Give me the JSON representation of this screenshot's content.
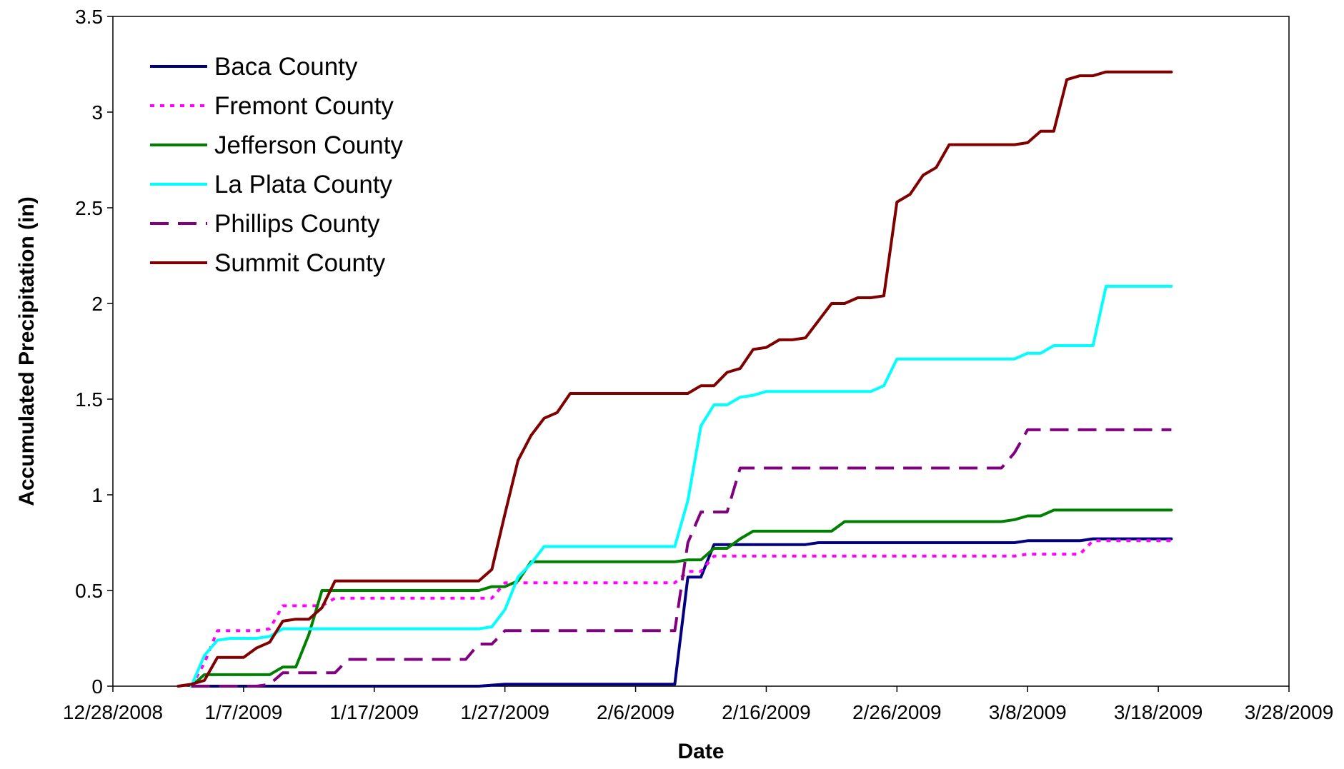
{
  "chart_data": {
    "type": "line",
    "title": "",
    "xlabel": "Date",
    "ylabel": "Accumulated Precipitation (in)",
    "xlim": [
      "2008-12-28",
      "2009-03-28"
    ],
    "ylim": [
      0,
      3.5
    ],
    "x_ticks": [
      {
        "date": "2008-12-28",
        "label": "12/28/2008"
      },
      {
        "date": "2009-01-07",
        "label": "1/7/2009"
      },
      {
        "date": "2009-01-17",
        "label": "1/17/2009"
      },
      {
        "date": "2009-01-27",
        "label": "1/27/2009"
      },
      {
        "date": "2009-02-06",
        "label": "2/6/2009"
      },
      {
        "date": "2009-02-16",
        "label": "2/16/2009"
      },
      {
        "date": "2009-02-26",
        "label": "2/26/2009"
      },
      {
        "date": "2009-03-08",
        "label": "3/8/2009"
      },
      {
        "date": "2009-03-18",
        "label": "3/18/2009"
      },
      {
        "date": "2009-03-28",
        "label": "3/28/2009"
      }
    ],
    "y_ticks": [
      {
        "value": 0,
        "label": "0"
      },
      {
        "value": 0.5,
        "label": "0.5"
      },
      {
        "value": 1,
        "label": "1"
      },
      {
        "value": 1.5,
        "label": "1.5"
      },
      {
        "value": 2,
        "label": "2"
      },
      {
        "value": 2.5,
        "label": "2.5"
      },
      {
        "value": 3,
        "label": "3"
      },
      {
        "value": 3.5,
        "label": "3.5"
      }
    ],
    "legend_position": "top-left",
    "grid": false,
    "series": [
      {
        "name": "Baca County",
        "color": "#000080",
        "dash": "solid",
        "points": [
          [
            "2009-01-03",
            0
          ],
          [
            "2009-01-04",
            0
          ],
          [
            "2009-01-05",
            0
          ],
          [
            "2009-01-20",
            0
          ],
          [
            "2009-01-25",
            0
          ],
          [
            "2009-01-27",
            0.01
          ],
          [
            "2009-02-08",
            0.01
          ],
          [
            "2009-02-09",
            0.01
          ],
          [
            "2009-02-10",
            0.57
          ],
          [
            "2009-02-11",
            0.57
          ],
          [
            "2009-02-12",
            0.74
          ],
          [
            "2009-02-13",
            0.74
          ],
          [
            "2009-02-14",
            0.74
          ],
          [
            "2009-02-18",
            0.74
          ],
          [
            "2009-02-19",
            0.74
          ],
          [
            "2009-02-20",
            0.75
          ],
          [
            "2009-02-26",
            0.75
          ],
          [
            "2009-03-07",
            0.75
          ],
          [
            "2009-03-08",
            0.76
          ],
          [
            "2009-03-11",
            0.76
          ],
          [
            "2009-03-12",
            0.76
          ],
          [
            "2009-03-13",
            0.77
          ],
          [
            "2009-03-19",
            0.77
          ]
        ]
      },
      {
        "name": "Fremont County",
        "color": "#ff00ff",
        "dash": "dotted",
        "points": [
          [
            "2009-01-03",
            0
          ],
          [
            "2009-01-04",
            0.12
          ],
          [
            "2009-01-05",
            0.29
          ],
          [
            "2009-01-07",
            0.29
          ],
          [
            "2009-01-08",
            0.29
          ],
          [
            "2009-01-09",
            0.3
          ],
          [
            "2009-01-10",
            0.42
          ],
          [
            "2009-01-13",
            0.42
          ],
          [
            "2009-01-14",
            0.46
          ],
          [
            "2009-01-26",
            0.46
          ],
          [
            "2009-01-27",
            0.54
          ],
          [
            "2009-02-09",
            0.54
          ],
          [
            "2009-02-10",
            0.6
          ],
          [
            "2009-02-11",
            0.6
          ],
          [
            "2009-02-12",
            0.68
          ],
          [
            "2009-03-07",
            0.68
          ],
          [
            "2009-03-08",
            0.69
          ],
          [
            "2009-03-12",
            0.69
          ],
          [
            "2009-03-13",
            0.76
          ],
          [
            "2009-03-19",
            0.76
          ]
        ]
      },
      {
        "name": "Jefferson County",
        "color": "#008000",
        "dash": "solid",
        "points": [
          [
            "2009-01-03",
            0
          ],
          [
            "2009-01-04",
            0.06
          ],
          [
            "2009-01-05",
            0.06
          ],
          [
            "2009-01-09",
            0.06
          ],
          [
            "2009-01-10",
            0.1
          ],
          [
            "2009-01-11",
            0.1
          ],
          [
            "2009-01-12",
            0.27
          ],
          [
            "2009-01-13",
            0.5
          ],
          [
            "2009-01-25",
            0.5
          ],
          [
            "2009-01-26",
            0.52
          ],
          [
            "2009-01-27",
            0.52
          ],
          [
            "2009-01-28",
            0.55
          ],
          [
            "2009-01-29",
            0.65
          ],
          [
            "2009-02-09",
            0.65
          ],
          [
            "2009-02-10",
            0.66
          ],
          [
            "2009-02-11",
            0.66
          ],
          [
            "2009-02-12",
            0.72
          ],
          [
            "2009-02-13",
            0.72
          ],
          [
            "2009-02-14",
            0.77
          ],
          [
            "2009-02-15",
            0.81
          ],
          [
            "2009-02-20",
            0.81
          ],
          [
            "2009-02-21",
            0.81
          ],
          [
            "2009-02-22",
            0.86
          ],
          [
            "2009-03-06",
            0.86
          ],
          [
            "2009-03-07",
            0.87
          ],
          [
            "2009-03-08",
            0.89
          ],
          [
            "2009-03-09",
            0.89
          ],
          [
            "2009-03-10",
            0.92
          ],
          [
            "2009-03-19",
            0.92
          ]
        ]
      },
      {
        "name": "La Plata County",
        "color": "#00ffff",
        "dash": "solid",
        "points": [
          [
            "2009-01-03",
            0
          ],
          [
            "2009-01-04",
            0.16
          ],
          [
            "2009-01-05",
            0.24
          ],
          [
            "2009-01-06",
            0.25
          ],
          [
            "2009-01-08",
            0.25
          ],
          [
            "2009-01-09",
            0.26
          ],
          [
            "2009-01-10",
            0.3
          ],
          [
            "2009-01-11",
            0.3
          ],
          [
            "2009-01-25",
            0.3
          ],
          [
            "2009-01-26",
            0.31
          ],
          [
            "2009-01-27",
            0.4
          ],
          [
            "2009-01-28",
            0.57
          ],
          [
            "2009-01-29",
            0.64
          ],
          [
            "2009-01-30",
            0.73
          ],
          [
            "2009-02-09",
            0.73
          ],
          [
            "2009-02-10",
            0.97
          ],
          [
            "2009-02-11",
            1.36
          ],
          [
            "2009-02-12",
            1.47
          ],
          [
            "2009-02-13",
            1.47
          ],
          [
            "2009-02-14",
            1.51
          ],
          [
            "2009-02-15",
            1.52
          ],
          [
            "2009-02-16",
            1.54
          ],
          [
            "2009-02-24",
            1.54
          ],
          [
            "2009-02-25",
            1.57
          ],
          [
            "2009-02-26",
            1.71
          ],
          [
            "2009-03-07",
            1.71
          ],
          [
            "2009-03-08",
            1.74
          ],
          [
            "2009-03-09",
            1.74
          ],
          [
            "2009-03-10",
            1.78
          ],
          [
            "2009-03-13",
            1.78
          ],
          [
            "2009-03-14",
            2.09
          ],
          [
            "2009-03-19",
            2.09
          ]
        ]
      },
      {
        "name": "Phillips County",
        "color": "#800080",
        "dash": "dashed",
        "points": [
          [
            "2009-01-03",
            0
          ],
          [
            "2009-01-08",
            0
          ],
          [
            "2009-01-09",
            0.01
          ],
          [
            "2009-01-10",
            0.07
          ],
          [
            "2009-01-14",
            0.07
          ],
          [
            "2009-01-15",
            0.14
          ],
          [
            "2009-01-24",
            0.14
          ],
          [
            "2009-01-25",
            0.22
          ],
          [
            "2009-01-26",
            0.22
          ],
          [
            "2009-01-27",
            0.29
          ],
          [
            "2009-02-09",
            0.29
          ],
          [
            "2009-02-10",
            0.75
          ],
          [
            "2009-02-11",
            0.91
          ],
          [
            "2009-02-13",
            0.91
          ],
          [
            "2009-02-14",
            1.14
          ],
          [
            "2009-03-06",
            1.14
          ],
          [
            "2009-03-07",
            1.22
          ],
          [
            "2009-03-08",
            1.34
          ],
          [
            "2009-03-19",
            1.34
          ]
        ]
      },
      {
        "name": "Summit County",
        "color": "#800000",
        "dash": "solid",
        "points": [
          [
            "2009-01-02",
            0
          ],
          [
            "2009-01-03",
            0.01
          ],
          [
            "2009-01-04",
            0.03
          ],
          [
            "2009-01-05",
            0.15
          ],
          [
            "2009-01-06",
            0.15
          ],
          [
            "2009-01-07",
            0.15
          ],
          [
            "2009-01-08",
            0.2
          ],
          [
            "2009-01-09",
            0.23
          ],
          [
            "2009-01-10",
            0.34
          ],
          [
            "2009-01-11",
            0.35
          ],
          [
            "2009-01-12",
            0.35
          ],
          [
            "2009-01-13",
            0.41
          ],
          [
            "2009-01-14",
            0.55
          ],
          [
            "2009-01-25",
            0.55
          ],
          [
            "2009-01-26",
            0.61
          ],
          [
            "2009-01-27",
            0.9
          ],
          [
            "2009-01-28",
            1.18
          ],
          [
            "2009-01-29",
            1.31
          ],
          [
            "2009-01-30",
            1.4
          ],
          [
            "2009-01-31",
            1.43
          ],
          [
            "2009-02-01",
            1.53
          ],
          [
            "2009-02-09",
            1.53
          ],
          [
            "2009-02-10",
            1.53
          ],
          [
            "2009-02-11",
            1.57
          ],
          [
            "2009-02-12",
            1.57
          ],
          [
            "2009-02-13",
            1.64
          ],
          [
            "2009-02-14",
            1.66
          ],
          [
            "2009-02-15",
            1.76
          ],
          [
            "2009-02-16",
            1.77
          ],
          [
            "2009-02-17",
            1.81
          ],
          [
            "2009-02-18",
            1.81
          ],
          [
            "2009-02-19",
            1.82
          ],
          [
            "2009-02-20",
            1.91
          ],
          [
            "2009-02-21",
            2.0
          ],
          [
            "2009-02-22",
            2.0
          ],
          [
            "2009-02-23",
            2.03
          ],
          [
            "2009-02-24",
            2.03
          ],
          [
            "2009-02-25",
            2.04
          ],
          [
            "2009-02-26",
            2.53
          ],
          [
            "2009-02-27",
            2.57
          ],
          [
            "2009-02-28",
            2.67
          ],
          [
            "2009-03-01",
            2.71
          ],
          [
            "2009-03-02",
            2.83
          ],
          [
            "2009-03-07",
            2.83
          ],
          [
            "2009-03-08",
            2.84
          ],
          [
            "2009-03-09",
            2.9
          ],
          [
            "2009-03-10",
            2.9
          ],
          [
            "2009-03-11",
            3.17
          ],
          [
            "2009-03-12",
            3.19
          ],
          [
            "2009-03-13",
            3.19
          ],
          [
            "2009-03-14",
            3.21
          ],
          [
            "2009-03-19",
            3.21
          ]
        ]
      }
    ]
  }
}
